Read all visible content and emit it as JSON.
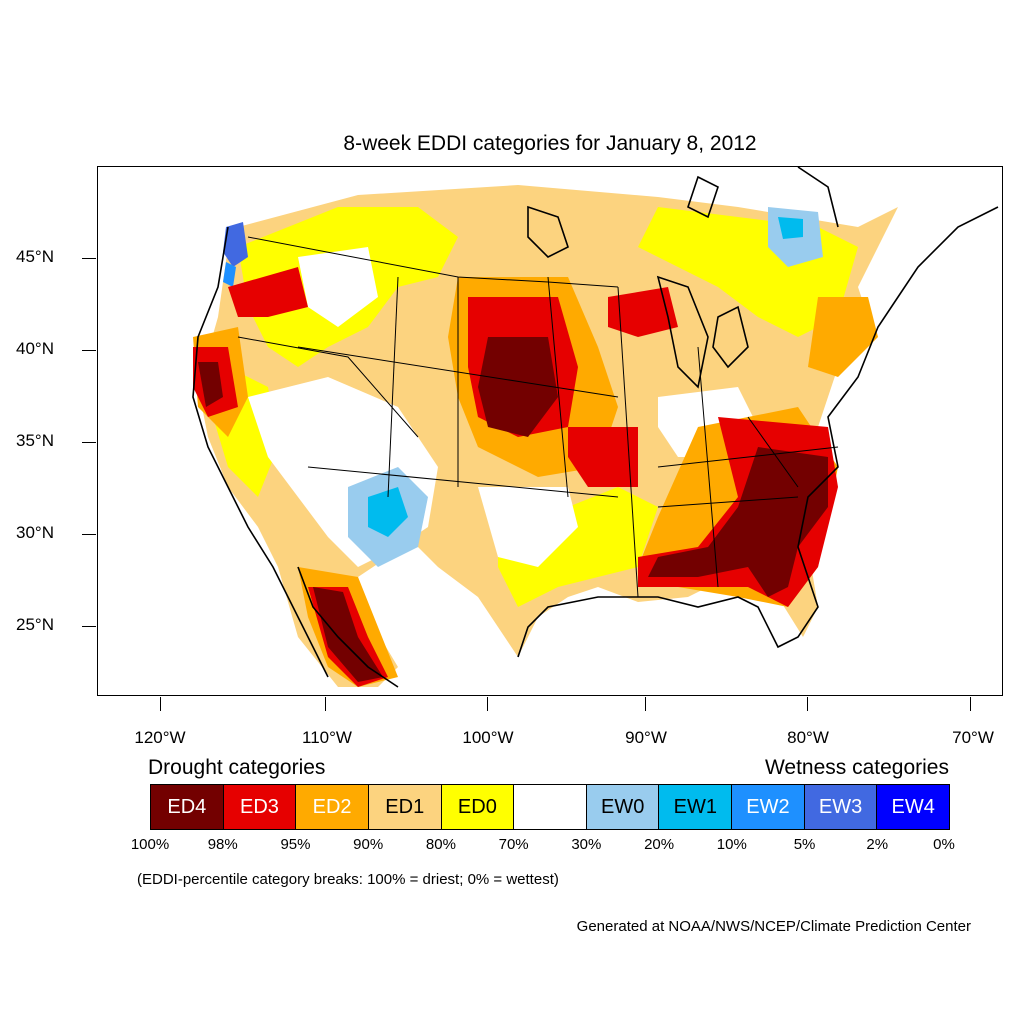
{
  "title": "8-week EDDI categories for January 8, 2012",
  "lat_labels": [
    "45°N",
    "40°N",
    "35°N",
    "30°N",
    "25°N"
  ],
  "lon_labels": [
    "120°W",
    "110°W",
    "100°W",
    "90°W",
    "80°W",
    "70°W"
  ],
  "legend": {
    "drought_header": "Drought categories",
    "wetness_header": "Wetness categories",
    "categories": [
      {
        "label": "ED4",
        "color": "#730000",
        "text_color": "#ffffff"
      },
      {
        "label": "ED3",
        "color": "#e60000",
        "text_color": "#ffffff"
      },
      {
        "label": "ED2",
        "color": "#ffaa00",
        "text_color": "#ffffff"
      },
      {
        "label": "ED1",
        "color": "#fcd37f",
        "text_color": "#000000"
      },
      {
        "label": "ED0",
        "color": "#ffff00",
        "text_color": "#000000"
      },
      {
        "label": "",
        "color": "#ffffff",
        "text_color": "#000000"
      },
      {
        "label": "EW0",
        "color": "#99ccee",
        "text_color": "#000000"
      },
      {
        "label": "EW1",
        "color": "#00bbee",
        "text_color": "#000000"
      },
      {
        "label": "EW2",
        "color": "#1e90ff",
        "text_color": "#ffffff"
      },
      {
        "label": "EW3",
        "color": "#4169e1",
        "text_color": "#ffffff"
      },
      {
        "label": "EW4",
        "color": "#0000ff",
        "text_color": "#ffffff"
      }
    ],
    "breaks": [
      "100%",
      "98%",
      "95%",
      "90%",
      "80%",
      "70%",
      "30%",
      "20%",
      "10%",
      "5%",
      "2%",
      "0%"
    ]
  },
  "note": "(EDDI-percentile category breaks: 100% = driest; 0% = wettest)",
  "credit": "Generated at NOAA/NWS/NCEP/Climate Prediction Center"
}
